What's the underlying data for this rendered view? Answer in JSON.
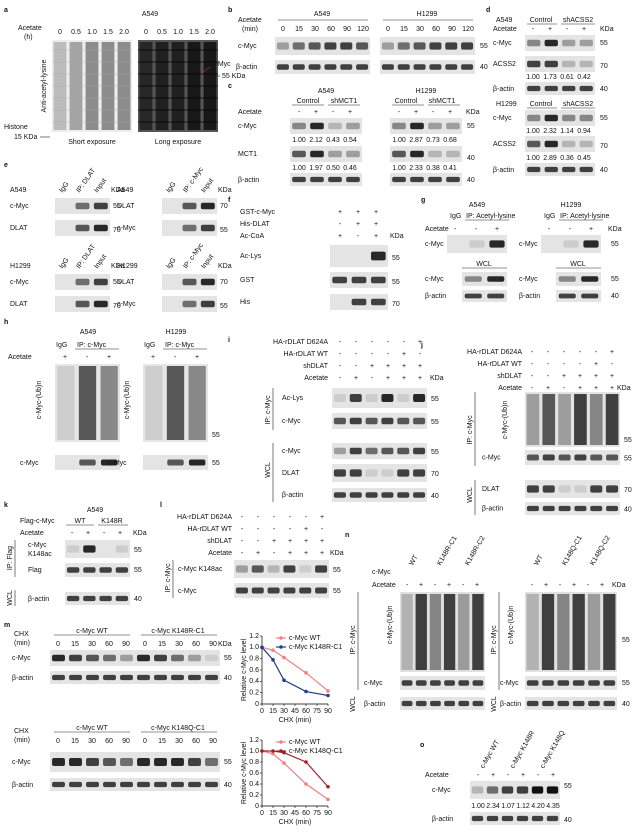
{
  "a": {
    "label": "a",
    "cell": "A549",
    "acetate": "Acetate",
    "unit": "(h)",
    "times_short": [
      "0",
      "0.5",
      "1.0",
      "1.5",
      "2.0"
    ],
    "times_long": [
      "0",
      "0.5",
      "1.0",
      "1.5",
      "2.0"
    ],
    "ylabel": "Anti-acetyl-lysine",
    "cmyc": "c-Myc",
    "kda55": "55 KDa",
    "histone": "Histone",
    "kda15": "15 KDa",
    "short": "Short exposure",
    "long": "Long exposure"
  },
  "b": {
    "label": "b",
    "acetate": "Acetate",
    "unit": "(min)",
    "cell1": "A549",
    "cell2": "H1299",
    "times1": [
      "0",
      "15",
      "30",
      "60",
      "90",
      "120"
    ],
    "times2": [
      "0",
      "15",
      "30",
      "60",
      "90",
      "120"
    ],
    "cmyc": "c-Myc",
    "actin": "β-actin",
    "m55": "55",
    "m40": "40"
  },
  "c": {
    "label": "c",
    "cell1": "A549",
    "cell2": "H1299",
    "control1": "Control",
    "sh1": "shMCT1",
    "control2": "Control",
    "sh2": "shMCT1",
    "acetate": "Acetate",
    "signs1": [
      "-",
      "+",
      "-",
      "+"
    ],
    "signs2": [
      "-",
      "+",
      "-",
      "+"
    ],
    "kda": "KDa",
    "cmyc": "c-Myc",
    "cmyc_q1": [
      "1.00",
      "2.12",
      "0.43",
      "0.54"
    ],
    "cmyc_q2": [
      "1.00",
      "2.87",
      "0.73",
      "0.68"
    ],
    "mct1": "MCT1",
    "mct1_q1": [
      "1.00",
      "1.97",
      "0.50",
      "0.46"
    ],
    "mct1_q2": [
      "1.00",
      "2.33",
      "0.38",
      "0.41"
    ],
    "actin": "β-actin",
    "m55": "55",
    "m40a": "40",
    "m40b": "40"
  },
  "d": {
    "label": "d",
    "a549": {
      "cell": "A549",
      "control": "Control",
      "sh": "shACSS2",
      "acetate": "Acetate",
      "signs": [
        "-",
        "+",
        "-",
        "+"
      ],
      "kda": "KDa",
      "cmyc": "c-Myc",
      "m55": "55",
      "acss2": "ACSS2",
      "m70": "70",
      "quant": [
        "1.00",
        "1.73",
        "0.61",
        "0.42"
      ],
      "actin": "β-actin",
      "m40": "40"
    },
    "h1299": {
      "cell": "H1299",
      "control": "Control",
      "sh": "shACSS2",
      "cmyc": "c-Myc",
      "m55": "55",
      "cmyc_q": [
        "1.00",
        "2.32",
        "1.14",
        "0.94"
      ],
      "acss2": "ACSS2",
      "m70": "70",
      "acss2_q": [
        "1.00",
        "2.89",
        "0.36",
        "0.45"
      ],
      "actin": "β-actin",
      "m40": "40"
    }
  },
  "e": {
    "label": "e",
    "blots": [
      {
        "cell": "A549",
        "igg": "IgG",
        "ip": "IP: DLAT",
        "input": "Input",
        "kda": "KDa",
        "row1": "c-Myc",
        "m1": "55",
        "row2": "DLAT",
        "m2": "70"
      },
      {
        "cell": "A549",
        "igg": "IgG",
        "ip": "IP: c-Myc",
        "input": "Input",
        "kda": "KDa",
        "row1": "DLAT",
        "m1": "70",
        "row2": "c-Myc",
        "m2": "55"
      },
      {
        "cell": "H1299",
        "igg": "IgG",
        "ip": "IP: DLAT",
        "input": "Input",
        "kda": "KDa",
        "row1": "c-Myc",
        "m1": "55",
        "row2": "DLAT",
        "m2": "70"
      },
      {
        "cell": "H1299",
        "igg": "IgG",
        "ip": "IP: c-Myc",
        "input": "Input",
        "kda": "KDa",
        "row1": "DLAT",
        "m1": "70",
        "row2": "c-Myc",
        "m2": "55"
      }
    ]
  },
  "f": {
    "label": "f",
    "rows": [
      {
        "name": "GST-c-Myc",
        "signs": [
          "+",
          "+",
          "+"
        ]
      },
      {
        "name": "His-DLAT",
        "signs": [
          "-",
          "+",
          "+"
        ]
      },
      {
        "name": "Ac-CoA",
        "signs": [
          "+",
          "-",
          "+"
        ]
      }
    ],
    "kda": "KDa",
    "blots": [
      {
        "name": "Ac-Lys",
        "marker": "55"
      },
      {
        "name": "GST",
        "marker": "55"
      },
      {
        "name": "His",
        "marker": "70"
      }
    ]
  },
  "g": {
    "label": "g",
    "acetate": "Acetate",
    "kda": "KDa",
    "parts": [
      {
        "cell": "A549",
        "igg": "IgG",
        "ip": "IP: Acetyl-lysine",
        "signs": [
          "-",
          "-",
          "+"
        ],
        "ip_row": "c-Myc",
        "wcl": "WCL",
        "wcl_row1": "c-Myc",
        "wcl_row2": "β-actin"
      },
      {
        "cell": "H1299",
        "igg": "IgG",
        "ip": "IP: Acetyl-lysine",
        "signs": [
          "-",
          "-",
          "+"
        ],
        "ip_row": "c-Myc",
        "wcl": "WCL",
        "wcl_row1": "c-Myc",
        "wcl_row2": "β-actin"
      }
    ],
    "m55a": "55",
    "m55b": "55",
    "m40": "40"
  },
  "h": {
    "label": "h",
    "acetate": "Acetate",
    "parts": [
      {
        "cell": "A549",
        "igg": "IgG",
        "ip": "IP: c-Myc",
        "signs": [
          "+",
          "-",
          "+"
        ],
        "ub": "c-Myc-(Ub)n",
        "cmyc": "c-Myc"
      },
      {
        "cell": "H1299",
        "igg": "IgG",
        "ip": "IP: c-Myc",
        "signs": [
          "+",
          "-",
          "+"
        ],
        "ub": "c-Myc-(Ub)n",
        "cmyc": "c-Myc"
      }
    ],
    "m55a": "55",
    "m55b": "55"
  },
  "i": {
    "label": "i",
    "rows": [
      {
        "name": "HA-rDLAT D624A",
        "signs": [
          "-",
          "-",
          "-",
          "-",
          "-",
          "+"
        ]
      },
      {
        "name": "HA-rDLAT WT",
        "signs": [
          "-",
          "-",
          "-",
          "-",
          "+",
          "-"
        ]
      },
      {
        "name": "shDLAT",
        "signs": [
          "-",
          "-",
          "+",
          "+",
          "+",
          "+"
        ]
      },
      {
        "name": "Acetate",
        "signs": [
          "-",
          "+",
          "-",
          "+",
          "+",
          "+"
        ]
      }
    ],
    "kda": "KDa",
    "ip": "IP: c-Myc",
    "wcl": "WCL",
    "blots": [
      {
        "name": "Ac-Lys",
        "marker": "55"
      },
      {
        "name": "c-Myc",
        "marker": "55"
      },
      {
        "name": "c-Myc",
        "marker": "55"
      },
      {
        "name": "DLAT",
        "marker": "70"
      },
      {
        "name": "β-actin",
        "marker": "40"
      }
    ]
  },
  "j": {
    "label": "j",
    "rows": [
      {
        "name": "HA-rDLAT D624A",
        "signs": [
          "-",
          "-",
          "-",
          "-",
          "-",
          "+"
        ]
      },
      {
        "name": "HA-rDLAT WT",
        "signs": [
          "-",
          "-",
          "-",
          "-",
          "+",
          "-"
        ]
      },
      {
        "name": "shDLAT",
        "signs": [
          "-",
          "-",
          "+",
          "+",
          "+",
          "+"
        ]
      },
      {
        "name": "Acetate",
        "signs": [
          "-",
          "+",
          "-",
          "+",
          "+",
          "+"
        ]
      }
    ],
    "kda": "KDa",
    "ip": "IP: c-Myc",
    "wcl": "WCL",
    "blots": [
      {
        "name": "c-Myc-(Ub)n",
        "marker": "55"
      },
      {
        "name": "c-Myc",
        "marker": "55"
      },
      {
        "name": "DLAT",
        "marker": "70"
      },
      {
        "name": "β-actin",
        "marker": "40"
      }
    ]
  },
  "k": {
    "label": "k",
    "cell": "A549",
    "flag": "Flag-c-Myc",
    "wt": "WT",
    "mut": "K148R",
    "acetate": "Acetate",
    "signs": [
      "-",
      "+",
      "-",
      "+"
    ],
    "kda": "KDa",
    "ip": "IP: Flag",
    "wcl": "WCL",
    "blots": [
      {
        "name": "c-Myc",
        "name2": "K148ac",
        "marker": "55"
      },
      {
        "name": "Flag",
        "marker": "55"
      },
      {
        "name": "β-actin",
        "marker": "40"
      }
    ]
  },
  "l": {
    "label": "l",
    "rows": [
      {
        "name": "HA-rDLAT D624A",
        "signs": [
          "-",
          "-",
          "-",
          "-",
          "-",
          "+"
        ]
      },
      {
        "name": "HA-rDLAT WT",
        "signs": [
          "-",
          "-",
          "-",
          "-",
          "+",
          "-"
        ]
      },
      {
        "name": "shDLAT",
        "signs": [
          "-",
          "-",
          "+",
          "+",
          "+",
          "+"
        ]
      },
      {
        "name": "Acetate",
        "signs": [
          "-",
          "+",
          "-",
          "+",
          "+",
          "+"
        ]
      }
    ],
    "kda": "KDa",
    "ip": "IP: c-Myc",
    "blots": [
      {
        "name": "c-Myc K148ac",
        "marker": "55"
      },
      {
        "name": "c-Myc",
        "marker": "55"
      }
    ]
  },
  "m": {
    "label": "m",
    "blots": [
      {
        "chx": "CHX",
        "unit": "(min)",
        "group1": "c-Myc WT",
        "group2": "c-Myc K148R-C1",
        "times": [
          "0",
          "15",
          "30",
          "60",
          "90",
          "0",
          "15",
          "30",
          "60",
          "90"
        ],
        "kda": "KDa",
        "row1": "c-Myc",
        "m1": "55",
        "row2": "β-actin",
        "m2": "40"
      },
      {
        "chx": "CHX",
        "unit": "(min)",
        "group1": "c-Myc WT",
        "group2": "c-Myc K148Q-C1",
        "times": [
          "0",
          "15",
          "30",
          "60",
          "90",
          "0",
          "15",
          "30",
          "60",
          "90"
        ],
        "row1": "c-Myc",
        "m1": "55",
        "row2": "β-actin",
        "m2": "40"
      }
    ]
  },
  "n": {
    "label": "n",
    "cmyc": "c-Myc",
    "acetate": "Acetate",
    "kda": "KDa",
    "parts": [
      {
        "groups": [
          "WT",
          "K148R-C1",
          "K148R-C2"
        ],
        "signs": [
          "-",
          "+",
          "-",
          "+",
          "-",
          "+"
        ],
        "ip": "IP: c-Myc",
        "ub": "c-Myc-(Ub)n",
        "cmyc": "c-Myc",
        "wcl": "WCL",
        "actin": "β-actin"
      },
      {
        "groups": [
          "WT",
          "K148Q-C1",
          "K148Q-C2"
        ],
        "signs": [
          "-",
          "+",
          "-",
          "+",
          "-",
          "+"
        ],
        "ip": "IP: c-Myc",
        "ub": "c-Myc-(Ub)n",
        "cmyc": "c-Myc",
        "wcl": "WCL",
        "actin": "β-actin"
      }
    ],
    "markers": [
      "55",
      "55",
      "40"
    ]
  },
  "o": {
    "label": "o",
    "groups": [
      "c-Myc WT",
      "c-Myc K148R",
      "c-Myc K148Q"
    ],
    "acetate": "Acetate",
    "signs": [
      "-",
      "+",
      "-",
      "+",
      "-",
      "+"
    ],
    "cmyc": "c-Myc",
    "m55": "55",
    "quant": [
      "1.00",
      "2.34",
      "1.07",
      "1.12",
      "4.20",
      "4.35"
    ],
    "actin": "β-actin",
    "m40": "40"
  },
  "chart_data": [
    {
      "type": "line",
      "ylabel": "Relative c-Myc level",
      "xlabel": "CHX (min)",
      "x": [
        0,
        15,
        30,
        60,
        90
      ],
      "series": [
        {
          "name": "c-Myc WT",
          "color": "#f07f86",
          "values": [
            1.0,
            0.95,
            0.82,
            0.55,
            0.23
          ]
        },
        {
          "name": "c-Myc K148R-C1",
          "color": "#1f3f8f",
          "values": [
            1.0,
            0.78,
            0.42,
            0.22,
            0.15
          ]
        }
      ],
      "xlim": [
        0,
        90
      ],
      "ylim": [
        0,
        1.2
      ],
      "xticks": [
        0,
        15,
        30,
        45,
        60,
        75,
        90
      ],
      "yticks": [
        0,
        0.2,
        0.4,
        0.6,
        0.8,
        {
          "value": 1,
          "label": "1.0"
        },
        1.2
      ],
      "legend": "upper right"
    },
    {
      "type": "line",
      "ylabel": "Relative c-Myc level",
      "xlabel": "CHX (min)",
      "x": [
        0,
        15,
        30,
        60,
        90
      ],
      "series": [
        {
          "name": "c-Myc WT",
          "color": "#f07f86",
          "values": [
            1.0,
            0.95,
            0.78,
            0.4,
            0.12
          ]
        },
        {
          "name": "c-Myc K148Q-C1",
          "color": "#a3202a",
          "values": [
            1.0,
            1.0,
            0.97,
            0.8,
            0.35
          ]
        }
      ],
      "xlim": [
        0,
        90
      ],
      "ylim": [
        0,
        1.2
      ],
      "xticks": [
        0,
        15,
        30,
        45,
        60,
        75,
        90
      ],
      "yticks": [
        0,
        0.2,
        0.4,
        0.6,
        0.8,
        {
          "value": 1,
          "label": "1.0"
        },
        1.2
      ],
      "legend": "upper right"
    }
  ]
}
